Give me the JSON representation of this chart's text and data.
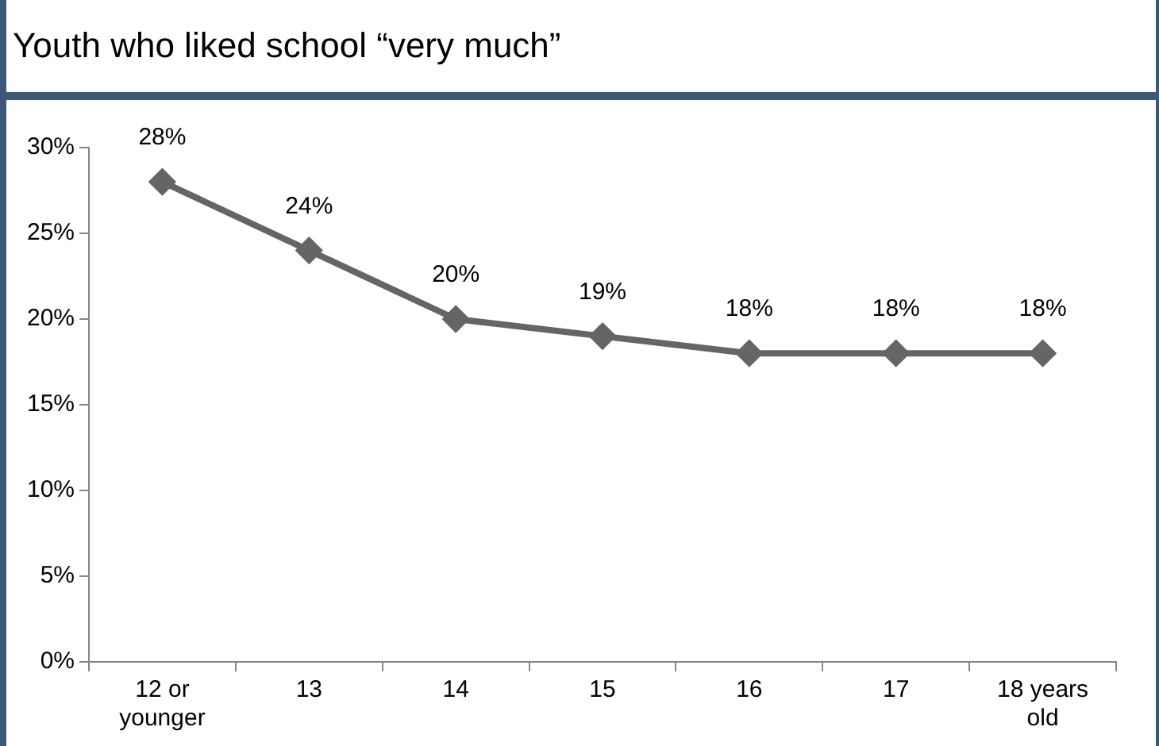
{
  "chart_data": {
    "type": "line",
    "title": "Youth who liked school “very much”",
    "categories": [
      "12 or younger",
      "13",
      "14",
      "15",
      "16",
      "17",
      "18 years old"
    ],
    "series": [
      {
        "color": "#656565",
        "values": [
          28,
          24,
          20,
          19,
          18,
          18,
          18
        ],
        "value_labels": [
          "28%",
          "24%",
          "20%",
          "19%",
          "18%",
          "18%",
          "18%"
        ]
      }
    ],
    "ylim": [
      0,
      30
    ],
    "yticks": [
      {
        "value": 0,
        "label": "0%"
      },
      {
        "value": 5,
        "label": "5%"
      },
      {
        "value": 10,
        "label": "10%"
      },
      {
        "value": 15,
        "label": "15%"
      },
      {
        "value": 20,
        "label": "20%"
      },
      {
        "value": 25,
        "label": "25%"
      },
      {
        "value": 30,
        "label": "30%"
      }
    ],
    "grid": false,
    "legend": false,
    "marker": "diamond",
    "line_style": "solid"
  }
}
